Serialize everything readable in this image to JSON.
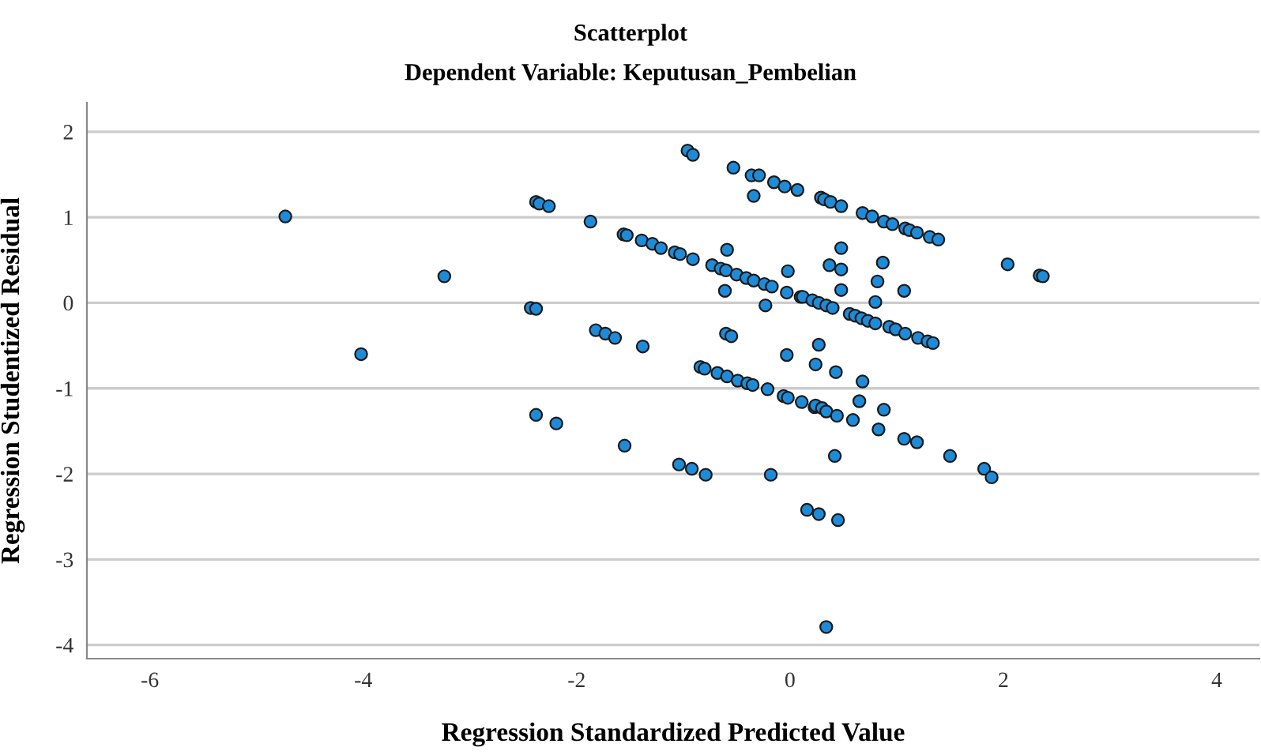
{
  "chart_data": {
    "type": "scatter",
    "title": "Scatterplot",
    "subtitle": "Dependent Variable: Keputusan_Pembelian",
    "xlabel": "Regression Standardized Predicted Value",
    "ylabel": "Regression Studentized Residual",
    "xlim": [
      -6.59,
      4.4
    ],
    "ylim": [
      -4.16,
      2.34
    ],
    "xticks": [
      -6,
      -4,
      -2,
      0,
      2,
      4
    ],
    "yticks": [
      -4,
      -3,
      -2,
      -1,
      0,
      1,
      2
    ],
    "grid": "y",
    "marker": "circle",
    "series": [
      {
        "color": "#1e8bd8",
        "x": [
          -4.73,
          -4.02,
          -3.24,
          -2.43,
          -2.38,
          -2.38,
          -2.35,
          -2.26,
          -1.87,
          -2.38,
          -2.19,
          -1.55,
          -1.04,
          -0.92,
          -1.82,
          -1.73,
          -1.64,
          -1.38,
          -1.56,
          -1.53,
          -1.39,
          -1.29,
          -1.21,
          -1.08,
          -1.03,
          -0.91,
          -0.96,
          -0.91,
          -0.53,
          -0.36,
          -0.29,
          -0.34,
          -0.15,
          -0.05,
          0.07,
          0.29,
          0.32,
          0.38,
          0.48,
          0.68,
          0.77,
          0.88,
          0.96,
          1.08,
          1.12,
          1.19,
          1.31,
          1.39,
          -0.73,
          -0.65,
          -0.6,
          -0.5,
          -0.41,
          -0.34,
          -0.24,
          -0.17,
          -0.03,
          0.1,
          0.12,
          0.21,
          0.27,
          0.34,
          0.4,
          0.56,
          0.61,
          0.67,
          0.73,
          0.8,
          0.93,
          0.99,
          1.08,
          1.2,
          1.29,
          1.34,
          -0.59,
          -0.61,
          -0.23,
          -0.02,
          0.37,
          0.48,
          0.48,
          0.48,
          0.87,
          0.82,
          1.07,
          0.8,
          2.04,
          2.34,
          2.37,
          -0.6,
          -0.55,
          -0.03,
          0.27,
          0.24,
          0.43,
          0.68,
          -0.84,
          -0.8,
          -0.68,
          -0.59,
          -0.49,
          -0.4,
          -0.35,
          -0.21,
          -0.06,
          -0.02,
          0.11,
          0.23,
          0.24,
          0.3,
          0.34,
          0.44,
          0.59,
          0.65,
          0.88,
          0.83,
          1.07,
          1.19,
          1.5,
          1.82,
          1.89,
          0.42,
          -0.79,
          -0.18,
          0.16,
          0.27,
          0.45,
          0.34
        ],
        "values": [
          1.01,
          -0.6,
          0.31,
          -0.06,
          -0.07,
          1.18,
          1.16,
          1.13,
          0.95,
          -1.31,
          -1.41,
          -1.67,
          -1.89,
          -1.94,
          -0.32,
          -0.36,
          -0.41,
          -0.51,
          0.8,
          0.79,
          0.73,
          0.69,
          0.64,
          0.59,
          0.57,
          0.51,
          1.78,
          1.73,
          1.58,
          1.49,
          1.49,
          1.25,
          1.41,
          1.36,
          1.32,
          1.23,
          1.21,
          1.18,
          1.13,
          1.05,
          1.01,
          0.95,
          0.92,
          0.87,
          0.85,
          0.82,
          0.77,
          0.74,
          0.44,
          0.4,
          0.38,
          0.33,
          0.29,
          0.26,
          0.22,
          0.19,
          0.12,
          0.07,
          0.07,
          0.03,
          0.0,
          -0.03,
          -0.06,
          -0.13,
          -0.15,
          -0.18,
          -0.21,
          -0.24,
          -0.28,
          -0.31,
          -0.36,
          -0.41,
          -0.45,
          -0.47,
          0.62,
          0.14,
          -0.03,
          0.37,
          0.44,
          0.64,
          0.39,
          0.15,
          0.47,
          0.25,
          0.14,
          0.01,
          0.45,
          0.32,
          0.31,
          -0.36,
          -0.39,
          -0.61,
          -0.49,
          -0.72,
          -0.81,
          -0.92,
          -0.75,
          -0.77,
          -0.82,
          -0.86,
          -0.91,
          -0.94,
          -0.96,
          -1.01,
          -1.09,
          -1.11,
          -1.16,
          -1.22,
          -1.2,
          -1.23,
          -1.27,
          -1.32,
          -1.37,
          -1.15,
          -1.25,
          -1.48,
          -1.59,
          -1.63,
          -1.79,
          -1.94,
          -2.04,
          -1.79,
          -2.01,
          -2.01,
          -2.42,
          -2.47,
          -2.54,
          -3.79
        ]
      }
    ]
  }
}
